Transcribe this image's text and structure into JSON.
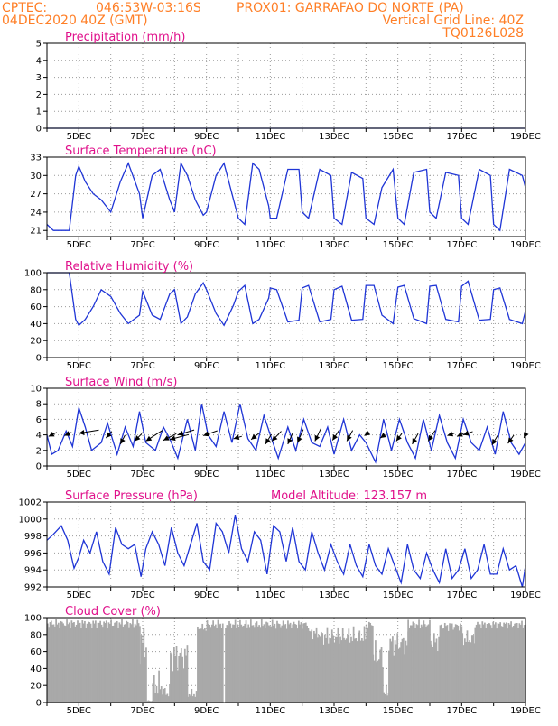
{
  "header": {
    "line1_left": "CPTEC:",
    "line1_coords": "046:53W-03:16S",
    "line1_station": "PROX01: GARRAFAO DO NORTE (PA)",
    "line2_date": "04DEC2020 40Z (GMT)",
    "line2_grid": "Vertical Grid Line: 40Z",
    "line3_code": "TQ0126L028"
  },
  "colors": {
    "header": "#ff7f27",
    "panel_title": "#e0118b",
    "series": "#1f35d6",
    "cloud_bars": "#a9a9a9",
    "arrows": "#000000"
  },
  "x_ticks": [
    "5DEC",
    "7DEC",
    "9DEC",
    "11DEC",
    "13DEC",
    "15DEC",
    "17DEC",
    "19DEC"
  ],
  "model_altitude": "Model Altitude: 123.157 m",
  "chart_data": [
    {
      "type": "line",
      "title": "Precipitation (mm/h)",
      "x": [
        4.0,
        19.0
      ],
      "values": [
        0,
        0
      ],
      "ylim": [
        0,
        5
      ],
      "yticks": [
        0,
        1,
        2,
        3,
        4,
        5
      ],
      "xlim": [
        4.0,
        19.0
      ],
      "grid": true
    },
    {
      "type": "line",
      "title": "Surface Temperature (nC)",
      "x": [
        4.0,
        4.2,
        4.45,
        4.7,
        4.9,
        5.0,
        5.2,
        5.45,
        5.7,
        6.0,
        6.3,
        6.55,
        6.9,
        7.0,
        7.3,
        7.55,
        7.85,
        8.0,
        8.2,
        8.4,
        8.65,
        8.9,
        9.0,
        9.3,
        9.55,
        9.85,
        10.0,
        10.2,
        10.45,
        10.65,
        10.95,
        11.0,
        11.2,
        11.55,
        11.9,
        12.0,
        12.2,
        12.55,
        12.9,
        13.0,
        13.25,
        13.55,
        13.9,
        14.0,
        14.25,
        14.5,
        14.85,
        15.0,
        15.2,
        15.5,
        15.9,
        16.0,
        16.2,
        16.5,
        16.9,
        17.0,
        17.2,
        17.55,
        17.9,
        18.0,
        18.2,
        18.5,
        18.9,
        19.0
      ],
      "values": [
        22,
        21,
        21,
        21,
        30,
        31.5,
        29,
        27,
        26,
        24,
        29,
        32,
        27,
        23,
        30,
        31,
        26,
        24,
        32,
        30,
        26,
        23.5,
        24,
        30,
        32,
        26,
        23,
        22,
        32,
        31,
        25,
        23,
        23,
        31,
        31,
        24,
        23,
        31,
        30,
        23,
        22,
        30.5,
        29.5,
        23,
        22,
        28,
        31,
        23,
        22,
        30.5,
        31,
        24,
        23,
        30.5,
        30,
        23,
        22,
        31,
        30,
        22,
        21,
        31,
        30,
        28
      ],
      "ylim": [
        20,
        33
      ],
      "yticks": [
        21,
        24,
        27,
        30,
        33
      ],
      "xlim": [
        4.0,
        19.0
      ],
      "grid": true
    },
    {
      "type": "line",
      "title": "Relative Humidity (%)",
      "x": [
        4.0,
        4.2,
        4.45,
        4.7,
        4.9,
        5.0,
        5.2,
        5.45,
        5.7,
        6.0,
        6.3,
        6.55,
        6.9,
        7.0,
        7.3,
        7.55,
        7.85,
        8.0,
        8.2,
        8.4,
        8.65,
        8.9,
        9.0,
        9.3,
        9.55,
        9.85,
        10.0,
        10.2,
        10.45,
        10.65,
        10.95,
        11.0,
        11.2,
        11.55,
        11.9,
        12.0,
        12.2,
        12.55,
        12.9,
        13.0,
        13.25,
        13.55,
        13.9,
        14.0,
        14.25,
        14.5,
        14.85,
        15.0,
        15.2,
        15.5,
        15.9,
        16.0,
        16.2,
        16.5,
        16.9,
        17.0,
        17.2,
        17.55,
        17.9,
        18.0,
        18.2,
        18.5,
        18.9,
        19.0
      ],
      "values": [
        100,
        100,
        100,
        100,
        45,
        38,
        45,
        60,
        80,
        72,
        52,
        40,
        50,
        78,
        50,
        45,
        75,
        80,
        40,
        48,
        75,
        88,
        80,
        52,
        38,
        62,
        78,
        85,
        40,
        45,
        70,
        82,
        80,
        42,
        44,
        82,
        85,
        42,
        45,
        80,
        84,
        44,
        45,
        85,
        85,
        50,
        40,
        83,
        85,
        46,
        40,
        84,
        85,
        45,
        42,
        84,
        90,
        44,
        45,
        80,
        82,
        45,
        40,
        55
      ],
      "ylim": [
        0,
        100
      ],
      "yticks": [
        0,
        20,
        40,
        60,
        80,
        100
      ],
      "xlim": [
        4.0,
        19.0
      ],
      "grid": true
    },
    {
      "type": "line",
      "title": "Surface Wind (m/s)",
      "x": [
        4.0,
        4.15,
        4.35,
        4.6,
        4.8,
        5.0,
        5.2,
        5.4,
        5.7,
        5.9,
        6.2,
        6.45,
        6.7,
        6.9,
        7.1,
        7.4,
        7.65,
        7.85,
        8.1,
        8.4,
        8.65,
        8.85,
        9.05,
        9.3,
        9.55,
        9.8,
        10.05,
        10.3,
        10.55,
        10.8,
        11.0,
        11.25,
        11.55,
        11.8,
        12.05,
        12.3,
        12.55,
        12.8,
        13.0,
        13.3,
        13.55,
        13.8,
        14.0,
        14.3,
        14.55,
        14.8,
        15.05,
        15.3,
        15.55,
        15.8,
        16.05,
        16.3,
        16.55,
        16.8,
        17.05,
        17.3,
        17.55,
        17.8,
        18.05,
        18.3,
        18.55,
        18.8,
        19.0
      ],
      "values": [
        4,
        1.5,
        2,
        4.5,
        2.5,
        7.5,
        5,
        2,
        3,
        5.5,
        1.5,
        5,
        2.5,
        7,
        3,
        2,
        5,
        3.5,
        1,
        6,
        2,
        8,
        4,
        2.5,
        7,
        3,
        8,
        3.5,
        2,
        6.5,
        4,
        1,
        5,
        2,
        6,
        3,
        2.5,
        5,
        1.5,
        6,
        2,
        4,
        3,
        0.5,
        6,
        2,
        6,
        3,
        1,
        6,
        2,
        6.5,
        3,
        1,
        6,
        3,
        2,
        5,
        1.5,
        7,
        3,
        1.5,
        3
      ],
      "ylim": [
        0,
        10
      ],
      "yticks": [
        0,
        2,
        4,
        6,
        8,
        10
      ],
      "xlim": [
        4.0,
        19.0
      ],
      "grid": true,
      "vectors": [
        {
          "x": 4.05,
          "y": 3.8,
          "dx": 0.35,
          "dy": 0.5
        },
        {
          "x": 4.55,
          "y": 3.9,
          "dx": 0.3,
          "dy": 0.4
        },
        {
          "x": 5.0,
          "y": 4.2,
          "dx": 0.85,
          "dy": 0.4
        },
        {
          "x": 5.85,
          "y": 3.6,
          "dx": 0.25,
          "dy": 0.8
        },
        {
          "x": 6.3,
          "y": 2.8,
          "dx": 0.2,
          "dy": 1.1
        },
        {
          "x": 6.75,
          "y": 3.2,
          "dx": 0.3,
          "dy": 0.9
        },
        {
          "x": 7.1,
          "y": 3.2,
          "dx": 0.7,
          "dy": 1.3
        },
        {
          "x": 7.65,
          "y": 3.3,
          "dx": 0.55,
          "dy": 0.8
        },
        {
          "x": 7.85,
          "y": 3.4,
          "dx": 0.8,
          "dy": 0.6
        },
        {
          "x": 8.1,
          "y": 4.0,
          "dx": 0.7,
          "dy": 0.6
        },
        {
          "x": 8.9,
          "y": 3.9,
          "dx": 0.6,
          "dy": 0.6
        },
        {
          "x": 9.85,
          "y": 3.5,
          "dx": 0.35,
          "dy": 0.3
        },
        {
          "x": 10.4,
          "y": 3.4,
          "dx": 0.35,
          "dy": 0.8
        },
        {
          "x": 10.85,
          "y": 2.8,
          "dx": 0.25,
          "dy": 1.2
        },
        {
          "x": 11.05,
          "y": 3.2,
          "dx": 0.4,
          "dy": 1.2
        },
        {
          "x": 11.55,
          "y": 2.8,
          "dx": 0.2,
          "dy": 1.3
        },
        {
          "x": 11.85,
          "y": 3.0,
          "dx": 0.25,
          "dy": 1.6
        },
        {
          "x": 12.4,
          "y": 3.2,
          "dx": 0.25,
          "dy": 1.5
        },
        {
          "x": 12.95,
          "y": 3.3,
          "dx": 0.3,
          "dy": 1.3
        },
        {
          "x": 13.4,
          "y": 3.2,
          "dx": 0.25,
          "dy": 1.3
        },
        {
          "x": 13.95,
          "y": 3.9,
          "dx": 0.2,
          "dy": 0.4
        },
        {
          "x": 14.45,
          "y": 3.6,
          "dx": 0.2,
          "dy": 0.4
        },
        {
          "x": 14.95,
          "y": 3.2,
          "dx": 0.25,
          "dy": 1.0
        },
        {
          "x": 15.45,
          "y": 2.8,
          "dx": 0.25,
          "dy": 1.3
        },
        {
          "x": 15.95,
          "y": 3.2,
          "dx": 0.3,
          "dy": 1.3
        },
        {
          "x": 16.55,
          "y": 3.9,
          "dx": 0.3,
          "dy": 0.3
        },
        {
          "x": 16.85,
          "y": 3.8,
          "dx": 0.3,
          "dy": 0.4
        },
        {
          "x": 17.05,
          "y": 4.0,
          "dx": 0.4,
          "dy": 0.4
        },
        {
          "x": 17.95,
          "y": 2.7,
          "dx": 0.25,
          "dy": 1.2
        },
        {
          "x": 18.45,
          "y": 2.9,
          "dx": 0.25,
          "dy": 1.0
        },
        {
          "x": 18.95,
          "y": 3.6,
          "dx": 0.1,
          "dy": 0.6
        }
      ]
    },
    {
      "type": "line",
      "title": "Surface Pressure (hPa)",
      "x": [
        4.0,
        4.2,
        4.45,
        4.65,
        4.85,
        5.0,
        5.15,
        5.35,
        5.55,
        5.75,
        5.95,
        6.15,
        6.35,
        6.55,
        6.75,
        6.95,
        7.1,
        7.3,
        7.5,
        7.7,
        7.9,
        8.1,
        8.3,
        8.5,
        8.7,
        8.9,
        9.1,
        9.3,
        9.5,
        9.7,
        9.9,
        10.1,
        10.3,
        10.5,
        10.7,
        10.9,
        11.1,
        11.3,
        11.5,
        11.7,
        11.9,
        12.1,
        12.3,
        12.5,
        12.7,
        12.9,
        13.1,
        13.3,
        13.5,
        13.7,
        13.9,
        14.1,
        14.3,
        14.5,
        14.7,
        14.9,
        15.1,
        15.3,
        15.5,
        15.7,
        15.9,
        16.1,
        16.3,
        16.5,
        16.7,
        16.9,
        17.1,
        17.3,
        17.5,
        17.7,
        17.9,
        18.1,
        18.3,
        18.5,
        18.7,
        18.9,
        19.0
      ],
      "values": [
        997.5,
        998.2,
        999.2,
        997.5,
        994.2,
        995.5,
        997.5,
        996.0,
        998.5,
        995.0,
        993.5,
        999.0,
        997.0,
        996.5,
        997.0,
        993.2,
        996.5,
        998.5,
        997.0,
        994.5,
        999.0,
        996.0,
        994.5,
        997.0,
        999.5,
        995.0,
        994.0,
        999.5,
        998.5,
        996.0,
        1000.5,
        996.5,
        995.0,
        998.5,
        997.5,
        993.5,
        999.2,
        998.5,
        995.0,
        999.0,
        995.0,
        994.0,
        998.5,
        996.0,
        994.0,
        997.0,
        995.0,
        993.5,
        997.0,
        994.5,
        993.2,
        997.0,
        994.5,
        993.5,
        996.5,
        994.5,
        992.5,
        997.0,
        994.0,
        993.0,
        996.0,
        994.0,
        992.5,
        996.5,
        993.0,
        994.0,
        996.5,
        993.0,
        994.0,
        997.0,
        993.5,
        993.5,
        996.5,
        994.0,
        994.5,
        992.0,
        994.5
      ],
      "ylim": [
        992,
        1002
      ],
      "yticks": [
        992,
        994,
        996,
        998,
        1000,
        1002
      ],
      "xlim": [
        4.0,
        19.0
      ],
      "grid": true
    },
    {
      "type": "bar",
      "title": "Cloud Cover (%)",
      "segments": [
        {
          "from": 4.0,
          "to": 6.9,
          "level": 93,
          "amp": 6
        },
        {
          "from": 6.9,
          "to": 7.12,
          "level": 70,
          "amp": 25
        },
        {
          "from": 7.12,
          "to": 7.3,
          "level": 2,
          "amp": 1
        },
        {
          "from": 7.3,
          "to": 7.6,
          "level": 20,
          "amp": 18
        },
        {
          "from": 7.6,
          "to": 7.85,
          "level": 12,
          "amp": 10
        },
        {
          "from": 7.85,
          "to": 8.4,
          "level": 55,
          "amp": 20
        },
        {
          "from": 8.4,
          "to": 8.7,
          "level": 10,
          "amp": 6
        },
        {
          "from": 8.7,
          "to": 9.0,
          "level": 88,
          "amp": 5
        },
        {
          "from": 9.0,
          "to": 9.5,
          "level": 92,
          "amp": 6
        },
        {
          "from": 9.5,
          "to": 9.58,
          "level": 0,
          "amp": 0
        },
        {
          "from": 9.58,
          "to": 12.2,
          "level": 92,
          "amp": 6
        },
        {
          "from": 12.2,
          "to": 12.5,
          "level": 82,
          "amp": 8
        },
        {
          "from": 12.5,
          "to": 14.0,
          "level": 78,
          "amp": 12
        },
        {
          "from": 14.0,
          "to": 14.2,
          "level": 92,
          "amp": 5
        },
        {
          "from": 14.2,
          "to": 14.5,
          "level": 55,
          "amp": 20
        },
        {
          "from": 14.5,
          "to": 14.7,
          "level": 12,
          "amp": 8
        },
        {
          "from": 14.7,
          "to": 15.3,
          "level": 70,
          "amp": 15
        },
        {
          "from": 15.3,
          "to": 16.0,
          "level": 92,
          "amp": 6
        },
        {
          "from": 16.0,
          "to": 16.3,
          "level": 72,
          "amp": 12
        },
        {
          "from": 16.3,
          "to": 17.0,
          "level": 90,
          "amp": 6
        },
        {
          "from": 17.0,
          "to": 17.4,
          "level": 75,
          "amp": 10
        },
        {
          "from": 17.4,
          "to": 19.0,
          "level": 92,
          "amp": 5
        }
      ],
      "ylim": [
        0,
        100
      ],
      "yticks": [
        0,
        20,
        40,
        60,
        80,
        100
      ],
      "xlim": [
        4.0,
        19.0
      ],
      "grid": true
    }
  ]
}
